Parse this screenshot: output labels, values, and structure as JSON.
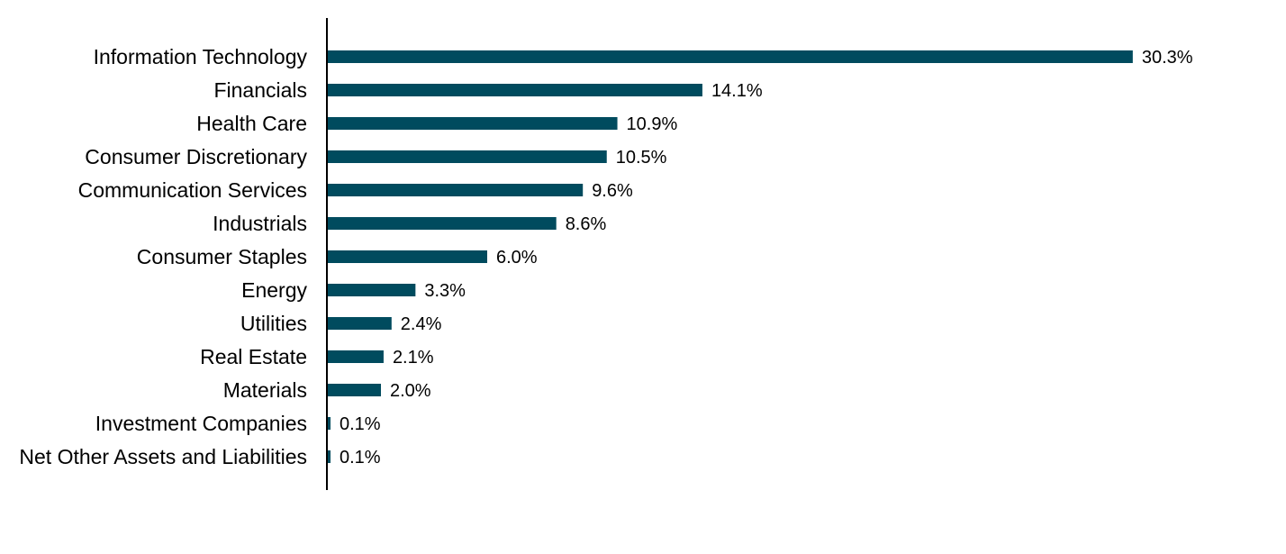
{
  "chart_data": {
    "type": "bar",
    "orientation": "horizontal",
    "categories": [
      "Information Technology",
      "Financials",
      "Health Care",
      "Consumer Discretionary",
      "Communication Services",
      "Industrials",
      "Consumer Staples",
      "Energy",
      "Utilities",
      "Real Estate",
      "Materials",
      "Investment Companies",
      "Net Other Assets and Liabilities"
    ],
    "values": [
      30.3,
      14.1,
      10.9,
      10.5,
      9.6,
      8.6,
      6.0,
      3.3,
      2.4,
      2.1,
      2.0,
      0.1,
      0.1
    ],
    "value_labels": [
      "30.3%",
      "14.1%",
      "10.9%",
      "10.5%",
      "9.6%",
      "8.6%",
      "6.0%",
      "3.3%",
      "2.4%",
      "2.1%",
      "2.0%",
      "0.1%",
      "0.1%"
    ],
    "title": "",
    "xlabel": "",
    "ylabel": "",
    "xlim": [
      0,
      33
    ],
    "grid": false,
    "legend": "none",
    "bar_color": "#004b5e",
    "axis_color": "#000000"
  }
}
